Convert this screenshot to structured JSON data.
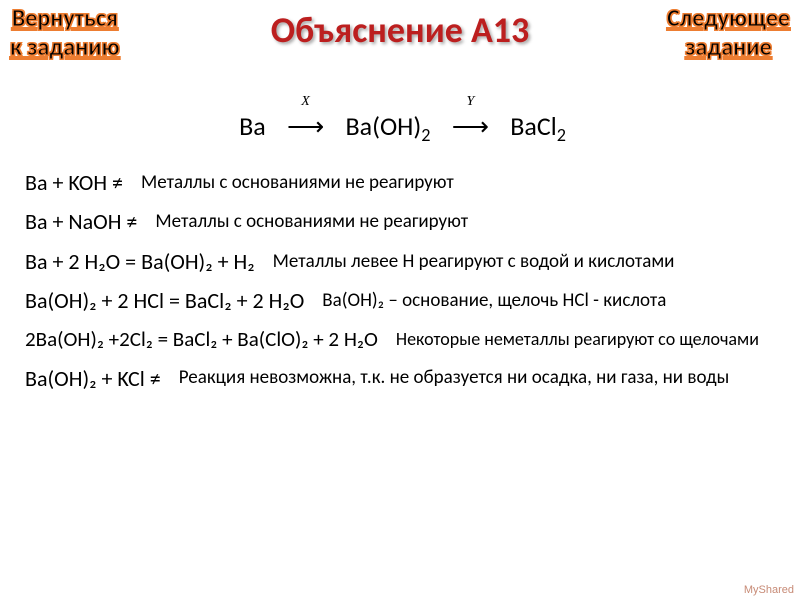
{
  "header": {
    "nav_back_line1": "Вернуться",
    "nav_back_line2": "к заданию",
    "title": "Объяснение А13",
    "nav_next_line1": "Следующее",
    "nav_next_line2": "задание"
  },
  "scheme": {
    "start": "Ba",
    "var1": "X",
    "mid": "Ba(OH)",
    "mid_sub": "2",
    "var2": "Y",
    "end": "BaCl",
    "end_sub": "2",
    "arrow": "⟶"
  },
  "rows": [
    {
      "eq": "Ba + KOH ≠",
      "desc": "Металлы с основаниями не реагируют"
    },
    {
      "eq": "Ba + NaOH ≠",
      "desc": "Металлы с основаниями не реагируют"
    },
    {
      "eq": "Ba  + 2 H₂O  = Ba(OH)₂ + H₂",
      "desc": "Металлы левее H реагируют с водой и кислотами"
    },
    {
      "eq": "Ba(OH)₂ + 2 HCl =  BaCl₂ + 2 H₂O",
      "desc": "Ba(OH)₂ – основание, щелочь HCl - кислота"
    },
    {
      "eq": "2Ba(OH)₂ +2Cl₂ =  BaCl₂ + Ba(ClO)₂ + 2 H₂O",
      "desc": "Некоторые неметаллы реагируют со щелочами"
    },
    {
      "eq": "Ba(OH)₂ + KCl ≠",
      "desc": "Реакция невозможна, т.к. не образуется ни осадка, ни газа, ни воды"
    }
  ],
  "footer": "MyShared",
  "colors": {
    "title": "#bc1f1f",
    "nav_outline": "#ed7d31",
    "text": "#000000",
    "bg": "#ffffff"
  }
}
